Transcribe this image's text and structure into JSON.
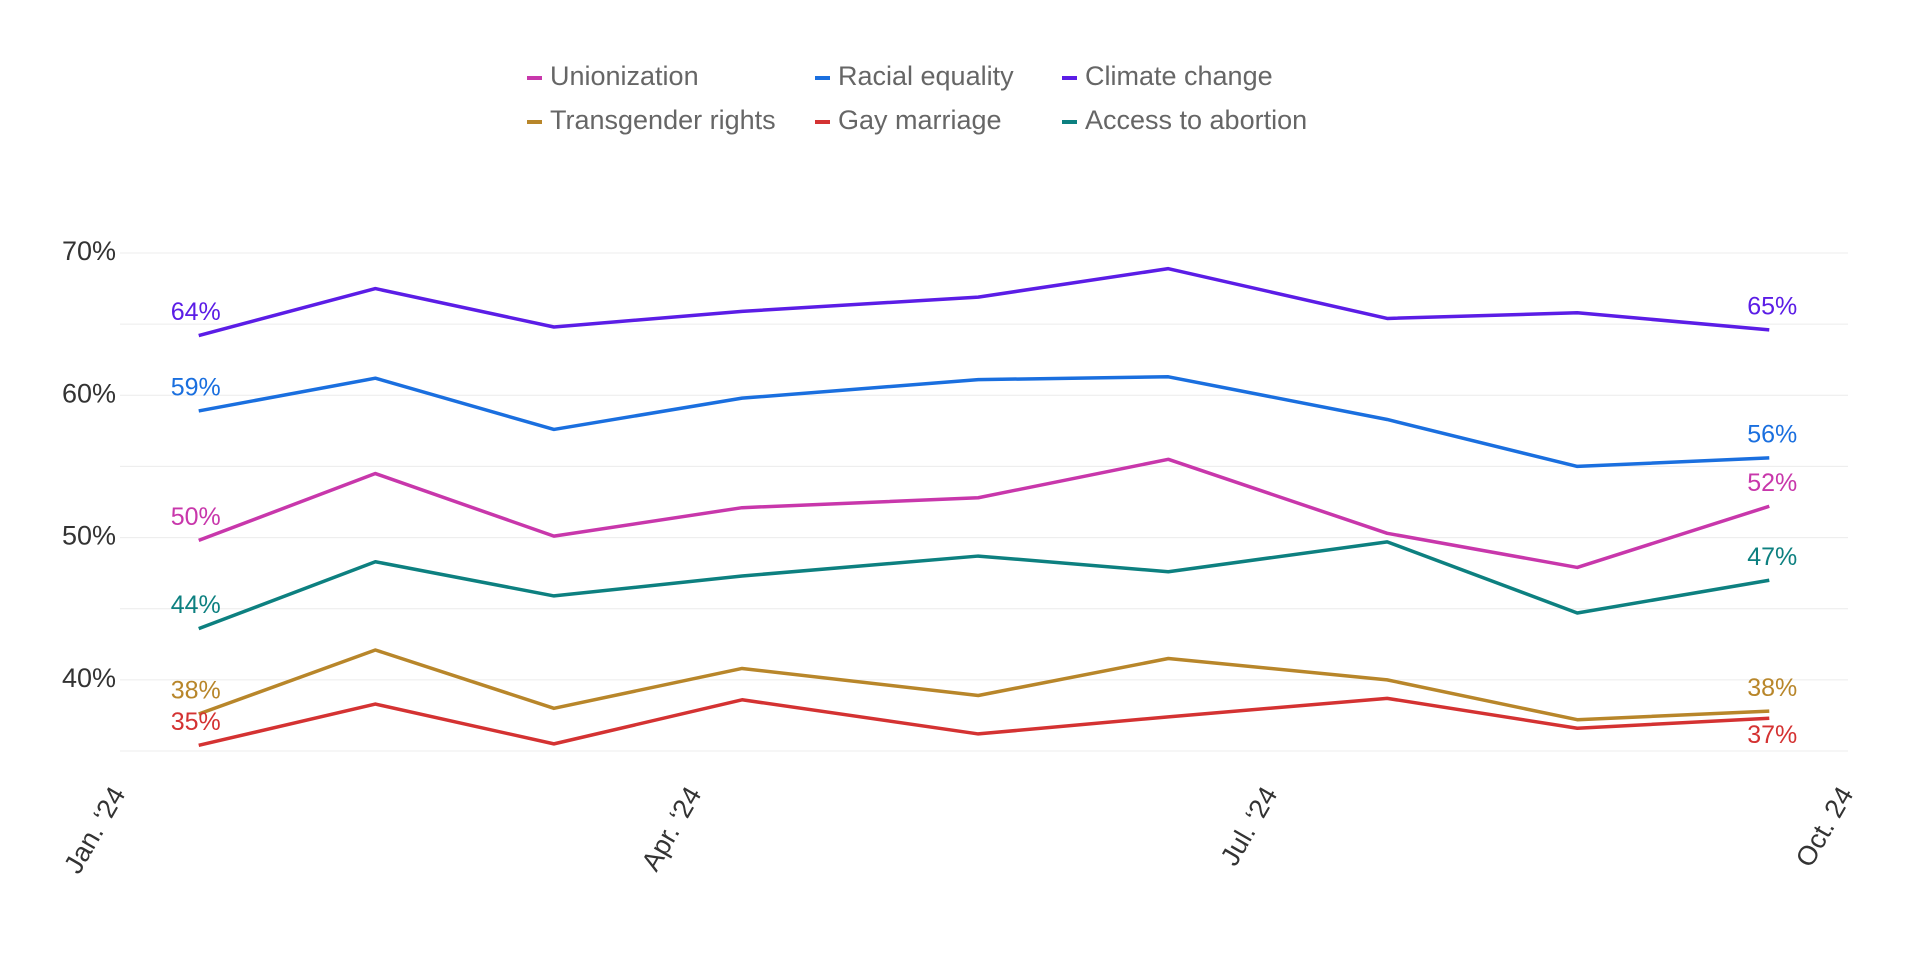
{
  "chart_data": {
    "type": "line",
    "x": [
      0.41,
      1.33,
      2.26,
      3.24,
      4.47,
      5.46,
      6.6,
      7.59,
      8.59
    ],
    "xlim": [
      0,
      9
    ],
    "xticks": [
      {
        "value": 0,
        "label": "Jan. ‘24"
      },
      {
        "value": 3,
        "label": "Apr. ‘24"
      },
      {
        "value": 6,
        "label": "Jul. ‘24"
      },
      {
        "value": 9,
        "label": "Oct. 24"
      }
    ],
    "ylim": [
      35,
      70
    ],
    "yticks": [
      {
        "value": 40,
        "label": "40%"
      },
      {
        "value": 50,
        "label": "50%"
      },
      {
        "value": 60,
        "label": "60%"
      },
      {
        "value": 70,
        "label": "70%"
      }
    ],
    "minor_gridlines": [
      35,
      45,
      55,
      65
    ],
    "grid": true,
    "series": [
      {
        "name": "Unionization",
        "color": "#c837ab",
        "values": [
          49.8,
          54.5,
          50.1,
          52.1,
          52.8,
          55.5,
          50.3,
          47.9,
          52.2
        ],
        "value_labels": [
          "50%",
          null,
          null,
          null,
          null,
          null,
          null,
          null,
          "52%"
        ]
      },
      {
        "name": "Racial equality",
        "color": "#1a6fdf",
        "values": [
          58.9,
          61.2,
          57.6,
          59.8,
          61.1,
          61.3,
          58.3,
          55.0,
          55.6
        ],
        "value_labels": [
          "59%",
          null,
          null,
          null,
          null,
          null,
          null,
          null,
          "56%"
        ]
      },
      {
        "name": "Climate change",
        "color": "#5b1de6",
        "values": [
          64.2,
          67.5,
          64.8,
          65.9,
          66.9,
          68.9,
          65.4,
          65.8,
          64.6
        ],
        "value_labels": [
          "64%",
          null,
          null,
          null,
          null,
          null,
          null,
          null,
          "65%"
        ]
      },
      {
        "name": "Transgender rights",
        "color": "#b8862a",
        "values": [
          37.6,
          42.1,
          38.0,
          40.8,
          38.9,
          41.5,
          40.0,
          37.2,
          37.8
        ],
        "value_labels": [
          "38%",
          null,
          null,
          null,
          null,
          null,
          null,
          null,
          "38%"
        ]
      },
      {
        "name": "Gay marriage",
        "color": "#d43232",
        "values": [
          35.4,
          38.3,
          35.5,
          38.6,
          36.2,
          37.4,
          38.7,
          36.6,
          37.3
        ],
        "value_labels": [
          "35%",
          null,
          null,
          null,
          null,
          null,
          null,
          null,
          "37%"
        ]
      },
      {
        "name": "Access to abortion",
        "color": "#0d8080",
        "values": [
          43.6,
          48.3,
          45.9,
          47.3,
          48.7,
          47.6,
          49.7,
          44.7,
          47.0
        ],
        "value_labels": [
          "44%",
          null,
          null,
          null,
          null,
          null,
          null,
          null,
          "47%"
        ]
      }
    ]
  }
}
